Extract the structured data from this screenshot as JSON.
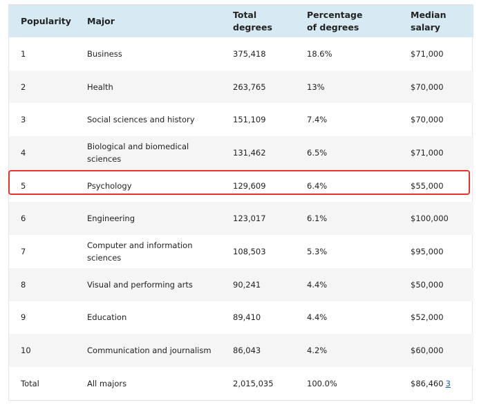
{
  "table": {
    "headers": {
      "popularity": "Popularity",
      "major": "Major",
      "total_degrees": "Total degrees",
      "percentage": "Percentage of degrees",
      "median_salary": "Median salary"
    },
    "rows": [
      {
        "rank": "1",
        "major": "Business",
        "degrees": "375,418",
        "pct": "18.6%",
        "salary": "$71,000"
      },
      {
        "rank": "2",
        "major": "Health",
        "degrees": "263,765",
        "pct": "13%",
        "salary": "$70,000"
      },
      {
        "rank": "3",
        "major": "Social sciences and history",
        "degrees": "151,109",
        "pct": "7.4%",
        "salary": "$70,000"
      },
      {
        "rank": "4",
        "major": "Biological and biomedical sciences",
        "degrees": "131,462",
        "pct": "6.5%",
        "salary": "$71,000"
      },
      {
        "rank": "5",
        "major": "Psychology",
        "degrees": "129,609",
        "pct": "6.4%",
        "salary": "$55,000"
      },
      {
        "rank": "6",
        "major": "Engineering",
        "degrees": "123,017",
        "pct": "6.1%",
        "salary": "$100,000"
      },
      {
        "rank": "7",
        "major": "Computer and information sciences",
        "degrees": "108,503",
        "pct": "5.3%",
        "salary": "$95,000"
      },
      {
        "rank": "8",
        "major": "Visual and performing arts",
        "degrees": "90,241",
        "pct": "4.4%",
        "salary": "$50,000"
      },
      {
        "rank": "9",
        "major": "Education",
        "degrees": "89,410",
        "pct": "4.4%",
        "salary": "$52,000"
      },
      {
        "rank": "10",
        "major": "Communication and journalism",
        "degrees": "86,043",
        "pct": "4.2%",
        "salary": "$60,000"
      }
    ],
    "total_row": {
      "rank": "Total",
      "major": "All majors",
      "degrees": "2,015,035",
      "pct": "100.0%",
      "salary": "$86,460",
      "footnote": "3"
    }
  },
  "highlight": {
    "row_rank": "5",
    "color": "#e8312c"
  },
  "colors": {
    "header_bg": "#d7eaf3",
    "zebra_bg": "#f5f5f5",
    "link": "#1a5fb4"
  }
}
